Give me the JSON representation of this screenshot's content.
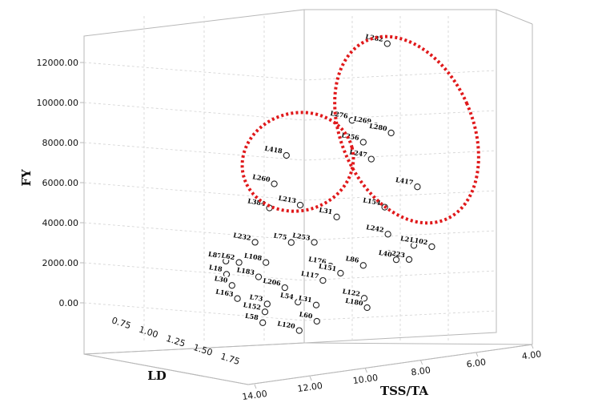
{
  "chart_data": {
    "type": "scatter",
    "dimensions": 3,
    "title": "",
    "xlabel": "TSS/TA",
    "ylabel": "FY",
    "zlabel": "LD",
    "x_ticks": [
      "14.00",
      "12.00",
      "10.00",
      "8.00",
      "6.00",
      "4.00"
    ],
    "y_ticks": [
      "0.00",
      "2000.00",
      "4000.00",
      "6000.00",
      "8000.00",
      "10000.00",
      "12000.00"
    ],
    "z_ticks": [
      "0.75",
      "1.00",
      "1.25",
      "1.50",
      "1.75"
    ],
    "xlim": [
      14,
      4
    ],
    "ylim": [
      0,
      12000
    ],
    "zlim": [
      0.5,
      1.75
    ],
    "grid": true,
    "highlight_color": "#e0191b",
    "points": [
      {
        "label": "L282",
        "tss_ta": 7.5,
        "fy": 11800,
        "ld": 0.6
      },
      {
        "label": "L276",
        "tss_ta": 8.9,
        "fy": 8300,
        "ld": 0.7
      },
      {
        "label": "L269",
        "tss_ta": 8.0,
        "fy": 8000,
        "ld": 0.75
      },
      {
        "label": "L280",
        "tss_ta": 7.4,
        "fy": 7650,
        "ld": 0.8
      },
      {
        "label": "L256",
        "tss_ta": 8.5,
        "fy": 7400,
        "ld": 0.85
      },
      {
        "label": "L247",
        "tss_ta": 8.2,
        "fy": 6600,
        "ld": 0.9
      },
      {
        "label": "L418",
        "tss_ta": 11.5,
        "fy": 7100,
        "ld": 0.85
      },
      {
        "label": "L260",
        "tss_ta": 12.0,
        "fy": 5900,
        "ld": 0.95
      },
      {
        "label": "L384",
        "tss_ta": 12.2,
        "fy": 4800,
        "ld": 1.0
      },
      {
        "label": "L213",
        "tss_ta": 11.0,
        "fy": 4800,
        "ld": 1.0
      },
      {
        "label": "L417",
        "tss_ta": 6.4,
        "fy": 5000,
        "ld": 0.9
      },
      {
        "label": "L31",
        "tss_ta": 9.6,
        "fy": 4200,
        "ld": 1.1
      },
      {
        "label": "L154",
        "tss_ta": 7.7,
        "fy": 4300,
        "ld": 1.0
      },
      {
        "label": "L232",
        "tss_ta": 12.8,
        "fy": 3400,
        "ld": 1.15
      },
      {
        "label": "L253",
        "tss_ta": 10.5,
        "fy": 3200,
        "ld": 1.2
      },
      {
        "label": "L242",
        "tss_ta": 7.6,
        "fy": 3100,
        "ld": 1.1
      },
      {
        "label": "L2",
        "tss_ta": 6.6,
        "fy": 2500,
        "ld": 1.15
      },
      {
        "label": "L102",
        "tss_ta": 5.9,
        "fy": 2350,
        "ld": 1.15
      },
      {
        "label": "L223",
        "tss_ta": 6.8,
        "fy": 1900,
        "ld": 1.2
      },
      {
        "label": "L40",
        "tss_ta": 7.3,
        "fy": 1950,
        "ld": 1.2
      },
      {
        "label": "L86",
        "tss_ta": 8.6,
        "fy": 1900,
        "ld": 1.25
      },
      {
        "label": "L176",
        "tss_ta": 9.9,
        "fy": 2100,
        "ld": 1.3
      },
      {
        "label": "L151",
        "tss_ta": 9.5,
        "fy": 1700,
        "ld": 1.3
      },
      {
        "label": "L117",
        "tss_ta": 10.2,
        "fy": 1500,
        "ld": 1.35
      },
      {
        "label": "L206",
        "tss_ta": 11.7,
        "fy": 1400,
        "ld": 1.4
      },
      {
        "label": "L183",
        "tss_ta": 12.7,
        "fy": 1900,
        "ld": 1.3
      },
      {
        "label": "L108",
        "tss_ta": 12.4,
        "fy": 2500,
        "ld": 1.25
      },
      {
        "label": "L75",
        "tss_ta": 11.4,
        "fy": 3300,
        "ld": 1.2
      },
      {
        "label": "L73",
        "tss_ta": 12.4,
        "fy": 750,
        "ld": 1.45
      },
      {
        "label": "L152",
        "tss_ta": 12.5,
        "fy": 450,
        "ld": 1.5
      },
      {
        "label": "L58",
        "tss_ta": 12.6,
        "fy": 0,
        "ld": 1.55
      },
      {
        "label": "L54",
        "tss_ta": 11.2,
        "fy": 700,
        "ld": 1.45
      },
      {
        "label": "L31b",
        "tss_ta": 10.5,
        "fy": 550,
        "ld": 1.5
      },
      {
        "label": "L60",
        "tss_ta": 10.5,
        "fy": -100,
        "ld": 1.6
      },
      {
        "label": "L120",
        "tss_ta": 11.2,
        "fy": -400,
        "ld": 1.65
      },
      {
        "label": "L122",
        "tss_ta": 8.6,
        "fy": 500,
        "ld": 1.4
      },
      {
        "label": "L180",
        "tss_ta": 8.5,
        "fy": 100,
        "ld": 1.45
      },
      {
        "label": "L87",
        "tss_ta": 13.8,
        "fy": 1700,
        "ld": 0.6
      },
      {
        "label": "L62",
        "tss_ta": 13.3,
        "fy": 1650,
        "ld": 0.65
      },
      {
        "label": "L18",
        "tss_ta": 13.8,
        "fy": 1200,
        "ld": 0.7
      },
      {
        "label": "L30",
        "tss_ta": 13.6,
        "fy": 700,
        "ld": 0.75
      },
      {
        "label": "L163",
        "tss_ta": 13.4,
        "fy": 100,
        "ld": 0.8
      }
    ],
    "highlight_groups": [
      {
        "members": [
          "L282",
          "L276",
          "L269",
          "L280",
          "L256",
          "L247",
          "L417"
        ]
      },
      {
        "members": [
          "L418",
          "L260",
          "L213"
        ]
      }
    ]
  }
}
